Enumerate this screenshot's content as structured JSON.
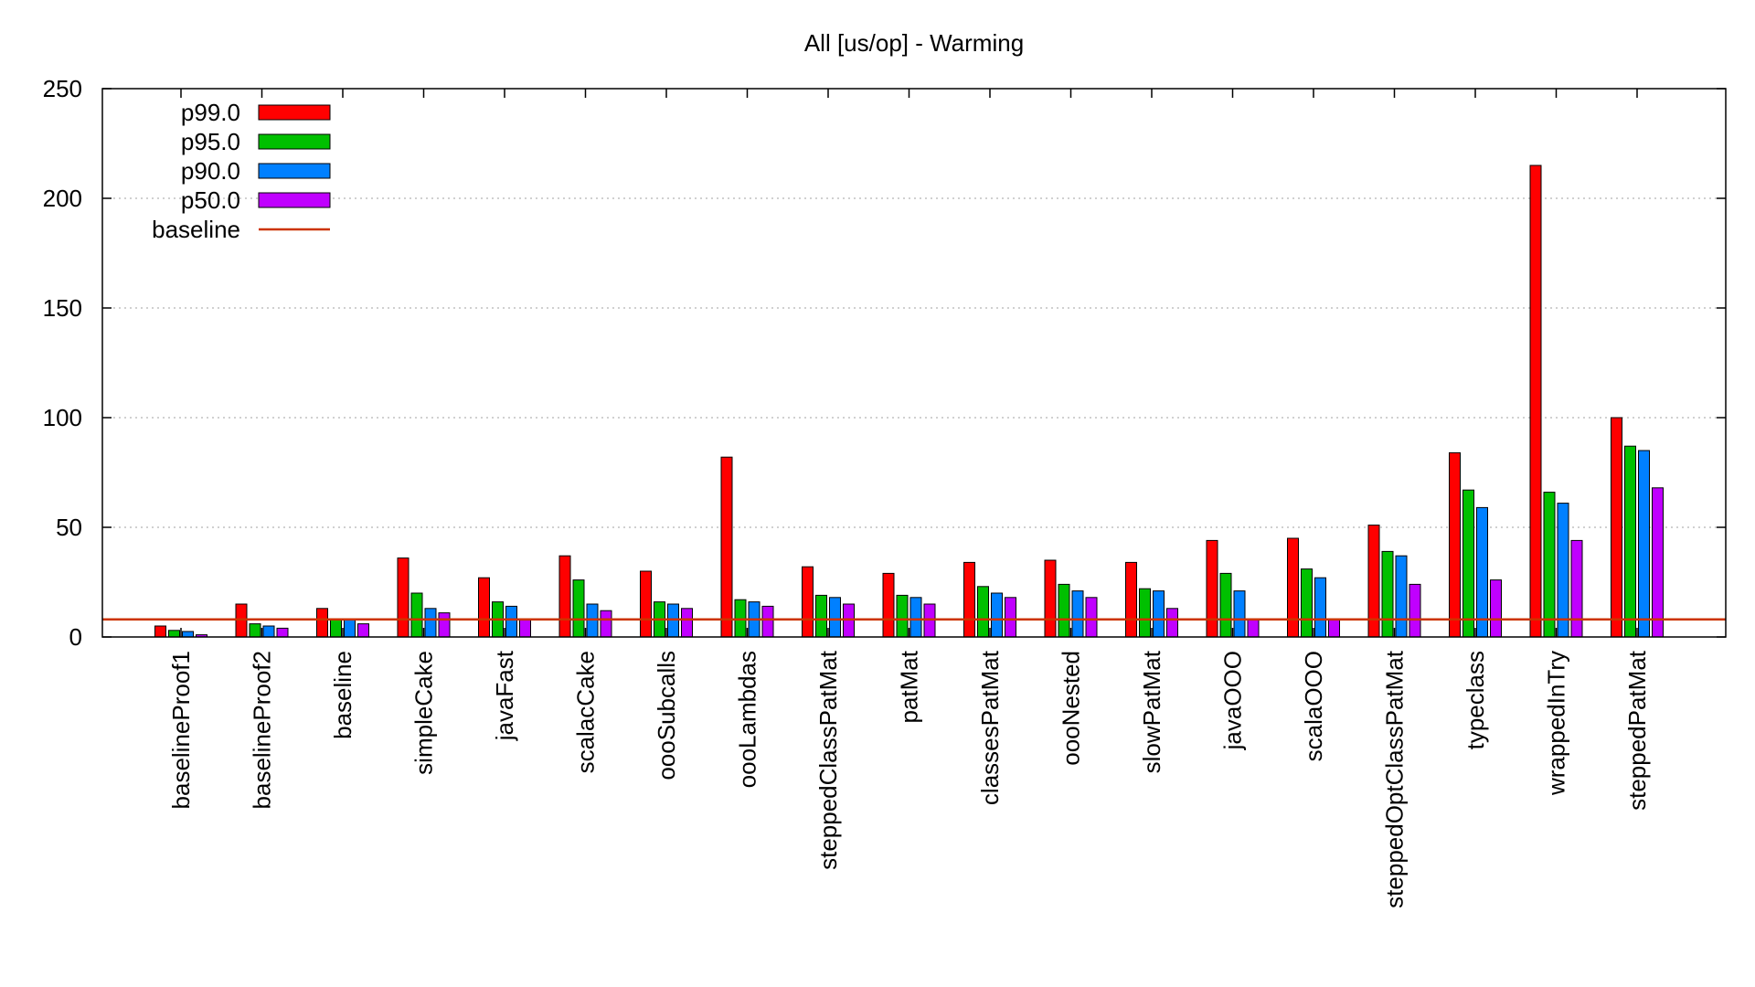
{
  "chart_data": {
    "type": "bar",
    "title": "All [us/op] - Warming",
    "xlabel": "",
    "ylabel": "",
    "ylim": [
      0,
      250
    ],
    "yticks": [
      0,
      50,
      100,
      150,
      200,
      250
    ],
    "grid": true,
    "legend_position": "top-left",
    "categories": [
      "baselineProof1",
      "baselineProof2",
      "baseline",
      "simpleCake",
      "javaFast",
      "scalacCake",
      "oooSubcalls",
      "oooLambdas",
      "steppedClassPatMat",
      "patMat",
      "classesPatMat",
      "oooNested",
      "slowPatMat",
      "javaOOO",
      "scalaOOO",
      "steppedOptClassPatMat",
      "typeclass",
      "wrappedInTry",
      "steppedPatMat"
    ],
    "series": [
      {
        "name": "p99.0",
        "color": "#ff0000",
        "values": [
          5,
          15,
          13,
          36,
          27,
          37,
          30,
          82,
          32,
          29,
          34,
          35,
          34,
          44,
          45,
          51,
          84,
          215,
          100
        ]
      },
      {
        "name": "p95.0",
        "color": "#00c000",
        "values": [
          3,
          6,
          8,
          20,
          16,
          26,
          16,
          17,
          19,
          19,
          23,
          24,
          22,
          29,
          31,
          39,
          67,
          66,
          87
        ]
      },
      {
        "name": "p90.0",
        "color": "#0080ff",
        "values": [
          2.5,
          5,
          8,
          13,
          14,
          15,
          15,
          16,
          18,
          18,
          20,
          21,
          21,
          21,
          27,
          37,
          59,
          61,
          85
        ]
      },
      {
        "name": "p50.0",
        "color": "#c000ff",
        "values": [
          1,
          4,
          6,
          11,
          8,
          12,
          13,
          14,
          15,
          15,
          18,
          18,
          13,
          8,
          8,
          24,
          26,
          44,
          68
        ]
      }
    ],
    "baseline": {
      "name": "baseline",
      "value": 8,
      "color": "#cc3300"
    }
  }
}
